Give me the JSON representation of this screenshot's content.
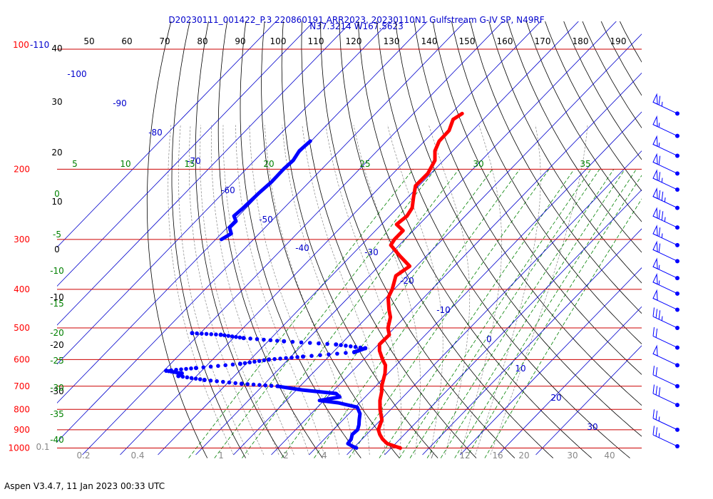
{
  "header": {
    "title_line1": "D20230111_001422_P.3 220860191 ARR2023, 20230110N1 Gulfstream G-IV SP, N49RF",
    "title_line2": "N37.3214 W167.5623"
  },
  "footer": {
    "text": "Aspen V3.4.7, 11 Jan 2023  00:33 UTC"
  },
  "colors": {
    "temperature": "#ff0000",
    "dewpoint": "#0000ff",
    "isobar": "#cc0000",
    "dry_adiabat": "#000000",
    "isotherm": "#0000cc",
    "mixing_ratio": "#008000",
    "moist_adiabat": "#888888",
    "wind_barb": "#0000ff"
  },
  "chart_data": {
    "type": "skew-t",
    "title": "D20230111_001422_P.3 220860191 ARR2023, 20230110N1 Gulfstream G-IV SP, N49RF",
    "subtitle": "N37.3214 W167.5623",
    "pressure_labels": [
      "100-110",
      "200",
      "300",
      "400",
      "500",
      "600",
      "700",
      "800",
      "900",
      "1000"
    ],
    "top_axis_ticks": [
      "50",
      "60",
      "70",
      "80",
      "90",
      "100",
      "110",
      "120",
      "130",
      "140",
      "150",
      "160",
      "170",
      "180",
      "190"
    ],
    "left_height_labels": [
      "40",
      "30",
      "20",
      "10",
      "0",
      "-10",
      "-20",
      "-30"
    ],
    "isotherm_labels": [
      "-100",
      "-90",
      "-80",
      "-70",
      "-60",
      "-50",
      "-40",
      "-30",
      "-20",
      "-10",
      "0",
      "10",
      "20",
      "30"
    ],
    "theta_labels": [
      "5",
      "10",
      "15",
      "20",
      "25",
      "30",
      "35"
    ],
    "left_scale_labels": [
      "0",
      "-5",
      "-10",
      "-15",
      "-20",
      "-25",
      "-30",
      "-35",
      "-40"
    ],
    "mixing_ratio_labels": [
      "0.1",
      "0.2",
      "0.4",
      "1",
      "2",
      "4",
      "7",
      "12",
      "16",
      "20",
      "30",
      "40"
    ],
    "temperature_profile": [
      {
        "p": 1000,
        "t": 12.4
      },
      {
        "p": 990,
        "t": 10.5
      },
      {
        "p": 975,
        "t": 7.8
      },
      {
        "p": 950,
        "t": 5.4
      },
      {
        "p": 925,
        "t": 3.5
      },
      {
        "p": 900,
        "t": 1.9
      },
      {
        "p": 850,
        "t": 0.3
      },
      {
        "p": 800,
        "t": -2.9
      },
      {
        "p": 760,
        "t": -5.2
      },
      {
        "p": 720,
        "t": -7.1
      },
      {
        "p": 700,
        "t": -8.4
      },
      {
        "p": 650,
        "t": -10.8
      },
      {
        "p": 620,
        "t": -12.8
      },
      {
        "p": 600,
        "t": -15.0
      },
      {
        "p": 570,
        "t": -18.1
      },
      {
        "p": 550,
        "t": -19.7
      },
      {
        "p": 520,
        "t": -19.6
      },
      {
        "p": 500,
        "t": -21.7
      },
      {
        "p": 470,
        "t": -23.8
      },
      {
        "p": 450,
        "t": -26.1
      },
      {
        "p": 420,
        "t": -29.4
      },
      {
        "p": 400,
        "t": -30.5
      },
      {
        "p": 370,
        "t": -33.0
      },
      {
        "p": 350,
        "t": -31.8
      },
      {
        "p": 330,
        "t": -37.0
      },
      {
        "p": 310,
        "t": -42.2
      },
      {
        "p": 300,
        "t": -42.7
      },
      {
        "p": 285,
        "t": -42.7
      },
      {
        "p": 275,
        "t": -46.0
      },
      {
        "p": 262,
        "t": -45.4
      },
      {
        "p": 250,
        "t": -46.1
      },
      {
        "p": 235,
        "t": -48.5
      },
      {
        "p": 220,
        "t": -50.9
      },
      {
        "p": 205,
        "t": -50.8
      },
      {
        "p": 190,
        "t": -52.3
      },
      {
        "p": 180,
        "t": -54.7
      },
      {
        "p": 170,
        "t": -56.1
      },
      {
        "p": 160,
        "t": -56.2
      },
      {
        "p": 150,
        "t": -58.0
      },
      {
        "p": 145,
        "t": -57.1
      }
    ],
    "dewpoint_profile": [
      {
        "p": 1000,
        "td": 0.8
      },
      {
        "p": 990,
        "td": -0.7
      },
      {
        "p": 975,
        "td": -2.6
      },
      {
        "p": 950,
        "td": -2.9
      },
      {
        "p": 925,
        "td": -3.8
      },
      {
        "p": 900,
        "td": -3.6
      },
      {
        "p": 875,
        "td": -4.5
      },
      {
        "p": 850,
        "td": -5.7
      },
      {
        "p": 820,
        "td": -7.1
      },
      {
        "p": 790,
        "td": -9.5
      },
      {
        "p": 770,
        "td": -15.7
      },
      {
        "p": 760,
        "td": -21.2
      },
      {
        "p": 745,
        "td": -16.7
      },
      {
        "p": 730,
        "td": -18.6
      },
      {
        "p": 715,
        "td": -28.6
      },
      {
        "p": 700,
        "td": -36.0
      },
      {
        "p": 690,
        "td": -46.1
      },
      {
        "p": 675,
        "td": -56.9
      },
      {
        "p": 660,
        "td": -64.8
      },
      {
        "p": 650,
        "td": -64.6
      },
      {
        "p": 640,
        "td": -69.4
      },
      {
        "p": 630,
        "td": -62.2
      },
      {
        "p": 615,
        "td": -51.6
      },
      {
        "p": 600,
        "td": -45.1
      },
      {
        "p": 590,
        "td": -36.8
      },
      {
        "p": 575,
        "td": -24.4
      },
      {
        "p": 562,
        "td": -22.5
      },
      {
        "p": 550,
        "td": -31.2
      },
      {
        "p": 540,
        "td": -45.8
      },
      {
        "p": 530,
        "td": -57.3
      },
      {
        "p": 520,
        "td": -64.2
      },
      {
        "p": 515,
        "td": -72.2
      },
      {
        "p": 300,
        "td": -88.5
      },
      {
        "p": 290,
        "td": -87.4
      },
      {
        "p": 280,
        "td": -89.4
      },
      {
        "p": 270,
        "td": -89.3
      },
      {
        "p": 262,
        "td": -91.2
      },
      {
        "p": 250,
        "td": -90.8
      },
      {
        "p": 230,
        "td": -90.5
      },
      {
        "p": 215,
        "td": -90.0
      },
      {
        "p": 200,
        "td": -90.1
      },
      {
        "p": 190,
        "td": -89.8
      },
      {
        "p": 180,
        "td": -90.6
      },
      {
        "p": 170,
        "td": -90.2
      }
    ],
    "wind_barbs_kt": [
      {
        "p": 145,
        "speed": 65,
        "dir": 250
      },
      {
        "p": 165,
        "speed": 55,
        "dir": 250
      },
      {
        "p": 185,
        "speed": 55,
        "dir": 255
      },
      {
        "p": 205,
        "speed": 60,
        "dir": 255
      },
      {
        "p": 225,
        "speed": 65,
        "dir": 255
      },
      {
        "p": 250,
        "speed": 75,
        "dir": 255
      },
      {
        "p": 280,
        "speed": 75,
        "dir": 260
      },
      {
        "p": 310,
        "speed": 65,
        "dir": 260
      },
      {
        "p": 340,
        "speed": 60,
        "dir": 265
      },
      {
        "p": 375,
        "speed": 55,
        "dir": 265
      },
      {
        "p": 410,
        "speed": 55,
        "dir": 265
      },
      {
        "p": 450,
        "speed": 50,
        "dir": 270
      },
      {
        "p": 500,
        "speed": 35,
        "dir": 270
      },
      {
        "p": 560,
        "speed": 20,
        "dir": 280
      },
      {
        "p": 620,
        "speed": 50,
        "dir": 280
      },
      {
        "p": 700,
        "speed": 20,
        "dir": 290
      },
      {
        "p": 780,
        "speed": 30,
        "dir": 300
      },
      {
        "p": 900,
        "speed": 25,
        "dir": 300
      },
      {
        "p": 990,
        "speed": 25,
        "dir": 300
      }
    ]
  }
}
